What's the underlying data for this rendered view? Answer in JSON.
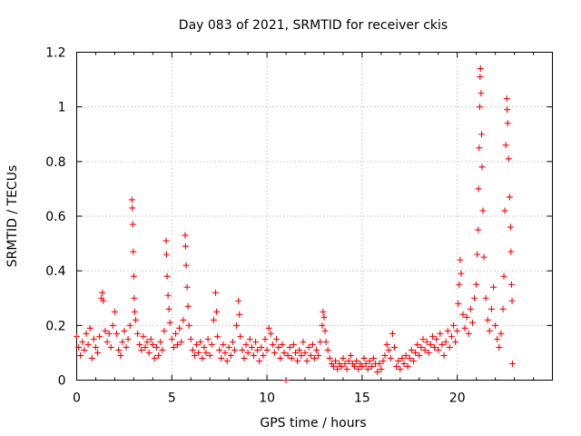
{
  "chart_data": {
    "type": "scatter",
    "title": "Day 083 of 2021, SRMTID for receiver ckis",
    "xlabel": "GPS time / hours",
    "ylabel": "SRMTID / TECUs",
    "xlim": [
      0,
      25
    ],
    "ylim": [
      0,
      1.2
    ],
    "xticks": [
      0,
      5,
      10,
      15,
      20
    ],
    "xtick_labels": [
      "0",
      "5",
      "10",
      "15",
      "20"
    ],
    "yticks": [
      0,
      0.2,
      0.4,
      0.6,
      0.8,
      1.0,
      1.2
    ],
    "ytick_labels": [
      "0",
      "0.2",
      "0.4",
      "0.6",
      "0.8",
      "1",
      "1.2"
    ],
    "grid": true,
    "marker": "+",
    "color": "#ff0000",
    "series": [
      {
        "name": "SRMTID",
        "points": [
          [
            0.0,
            0.16
          ],
          [
            0.1,
            0.12
          ],
          [
            0.2,
            0.09
          ],
          [
            0.3,
            0.14
          ],
          [
            0.4,
            0.11
          ],
          [
            0.5,
            0.17
          ],
          [
            0.6,
            0.13
          ],
          [
            0.7,
            0.19
          ],
          [
            0.8,
            0.08
          ],
          [
            0.9,
            0.15
          ],
          [
            1.0,
            0.12
          ],
          [
            1.1,
            0.1
          ],
          [
            1.2,
            0.16
          ],
          [
            1.3,
            0.3
          ],
          [
            1.35,
            0.32
          ],
          [
            1.4,
            0.29
          ],
          [
            1.5,
            0.18
          ],
          [
            1.6,
            0.14
          ],
          [
            1.7,
            0.17
          ],
          [
            1.8,
            0.12
          ],
          [
            1.9,
            0.2
          ],
          [
            2.0,
            0.25
          ],
          [
            2.1,
            0.17
          ],
          [
            2.2,
            0.11
          ],
          [
            2.3,
            0.09
          ],
          [
            2.4,
            0.14
          ],
          [
            2.5,
            0.18
          ],
          [
            2.6,
            0.12
          ],
          [
            2.7,
            0.15
          ],
          [
            2.8,
            0.2
          ],
          [
            2.9,
            0.66
          ],
          [
            2.92,
            0.63
          ],
          [
            2.95,
            0.57
          ],
          [
            2.97,
            0.47
          ],
          [
            3.0,
            0.38
          ],
          [
            3.02,
            0.3
          ],
          [
            3.05,
            0.25
          ],
          [
            3.1,
            0.22
          ],
          [
            3.2,
            0.17
          ],
          [
            3.3,
            0.13
          ],
          [
            3.4,
            0.11
          ],
          [
            3.5,
            0.16
          ],
          [
            3.6,
            0.12
          ],
          [
            3.7,
            0.14
          ],
          [
            3.8,
            0.1
          ],
          [
            3.9,
            0.15
          ],
          [
            4.0,
            0.13
          ],
          [
            4.1,
            0.08
          ],
          [
            4.2,
            0.12
          ],
          [
            4.3,
            0.09
          ],
          [
            4.4,
            0.14
          ],
          [
            4.5,
            0.11
          ],
          [
            4.6,
            0.18
          ],
          [
            4.7,
            0.51
          ],
          [
            4.72,
            0.46
          ],
          [
            4.75,
            0.38
          ],
          [
            4.8,
            0.31
          ],
          [
            4.85,
            0.26
          ],
          [
            4.9,
            0.21
          ],
          [
            5.0,
            0.15
          ],
          [
            5.1,
            0.12
          ],
          [
            5.2,
            0.17
          ],
          [
            5.3,
            0.13
          ],
          [
            5.4,
            0.19
          ],
          [
            5.5,
            0.14
          ],
          [
            5.6,
            0.22
          ],
          [
            5.7,
            0.53
          ],
          [
            5.72,
            0.49
          ],
          [
            5.75,
            0.42
          ],
          [
            5.8,
            0.34
          ],
          [
            5.85,
            0.27
          ],
          [
            5.9,
            0.2
          ],
          [
            6.0,
            0.15
          ],
          [
            6.1,
            0.11
          ],
          [
            6.2,
            0.09
          ],
          [
            6.3,
            0.13
          ],
          [
            6.4,
            0.1
          ],
          [
            6.5,
            0.14
          ],
          [
            6.6,
            0.08
          ],
          [
            6.7,
            0.12
          ],
          [
            6.8,
            0.1
          ],
          [
            6.9,
            0.15
          ],
          [
            7.0,
            0.09
          ],
          [
            7.1,
            0.13
          ],
          [
            7.2,
            0.22
          ],
          [
            7.3,
            0.32
          ],
          [
            7.35,
            0.25
          ],
          [
            7.4,
            0.16
          ],
          [
            7.5,
            0.11
          ],
          [
            7.6,
            0.08
          ],
          [
            7.7,
            0.13
          ],
          [
            7.8,
            0.1
          ],
          [
            7.9,
            0.07
          ],
          [
            8.0,
            0.12
          ],
          [
            8.1,
            0.09
          ],
          [
            8.2,
            0.14
          ],
          [
            8.3,
            0.11
          ],
          [
            8.4,
            0.2
          ],
          [
            8.5,
            0.29
          ],
          [
            8.55,
            0.24
          ],
          [
            8.6,
            0.16
          ],
          [
            8.7,
            0.11
          ],
          [
            8.8,
            0.08
          ],
          [
            8.9,
            0.13
          ],
          [
            9.0,
            0.1
          ],
          [
            9.1,
            0.15
          ],
          [
            9.2,
            0.12
          ],
          [
            9.3,
            0.09
          ],
          [
            9.4,
            0.14
          ],
          [
            9.5,
            0.11
          ],
          [
            9.6,
            0.07
          ],
          [
            9.7,
            0.12
          ],
          [
            9.8,
            0.09
          ],
          [
            9.9,
            0.15
          ],
          [
            10.0,
            0.11
          ],
          [
            10.1,
            0.19
          ],
          [
            10.2,
            0.17
          ],
          [
            10.3,
            0.13
          ],
          [
            10.4,
            0.1
          ],
          [
            10.5,
            0.15
          ],
          [
            10.6,
            0.12
          ],
          [
            10.7,
            0.08
          ],
          [
            10.8,
            0.13
          ],
          [
            10.9,
            0.1
          ],
          [
            11.0,
            0.0
          ],
          [
            11.1,
            0.09
          ],
          [
            11.2,
            0.12
          ],
          [
            11.3,
            0.08
          ],
          [
            11.4,
            0.13
          ],
          [
            11.5,
            0.1
          ],
          [
            11.6,
            0.07
          ],
          [
            11.7,
            0.11
          ],
          [
            11.8,
            0.09
          ],
          [
            11.9,
            0.14
          ],
          [
            12.0,
            0.1
          ],
          [
            12.1,
            0.07
          ],
          [
            12.2,
            0.12
          ],
          [
            12.3,
            0.09
          ],
          [
            12.4,
            0.13
          ],
          [
            12.5,
            0.08
          ],
          [
            12.6,
            0.11
          ],
          [
            12.7,
            0.09
          ],
          [
            12.8,
            0.14
          ],
          [
            12.9,
            0.2
          ],
          [
            12.95,
            0.25
          ],
          [
            13.0,
            0.23
          ],
          [
            13.05,
            0.18
          ],
          [
            13.1,
            0.14
          ],
          [
            13.2,
            0.11
          ],
          [
            13.3,
            0.08
          ],
          [
            13.4,
            0.06
          ],
          [
            13.5,
            0.05
          ],
          [
            13.6,
            0.07
          ],
          [
            13.7,
            0.04
          ],
          [
            13.8,
            0.06
          ],
          [
            13.9,
            0.05
          ],
          [
            14.0,
            0.08
          ],
          [
            14.1,
            0.06
          ],
          [
            14.2,
            0.04
          ],
          [
            14.3,
            0.07
          ],
          [
            14.4,
            0.09
          ],
          [
            14.5,
            0.06
          ],
          [
            14.6,
            0.05
          ],
          [
            14.7,
            0.07
          ],
          [
            14.8,
            0.04
          ],
          [
            14.9,
            0.06
          ],
          [
            15.0,
            0.05
          ],
          [
            15.1,
            0.08
          ],
          [
            15.2,
            0.06
          ],
          [
            15.3,
            0.04
          ],
          [
            15.4,
            0.07
          ],
          [
            15.5,
            0.05
          ],
          [
            15.6,
            0.08
          ],
          [
            15.7,
            0.06
          ],
          [
            15.8,
            0.03
          ],
          [
            15.9,
            0.06
          ],
          [
            16.0,
            0.04
          ],
          [
            16.1,
            0.07
          ],
          [
            16.2,
            0.09
          ],
          [
            16.3,
            0.13
          ],
          [
            16.4,
            0.11
          ],
          [
            16.5,
            0.08
          ],
          [
            16.6,
            0.17
          ],
          [
            16.7,
            0.12
          ],
          [
            16.8,
            0.05
          ],
          [
            16.9,
            0.07
          ],
          [
            17.0,
            0.04
          ],
          [
            17.1,
            0.08
          ],
          [
            17.2,
            0.06
          ],
          [
            17.3,
            0.09
          ],
          [
            17.4,
            0.05
          ],
          [
            17.5,
            0.08
          ],
          [
            17.6,
            0.11
          ],
          [
            17.7,
            0.07
          ],
          [
            17.8,
            0.1
          ],
          [
            17.9,
            0.13
          ],
          [
            18.0,
            0.09
          ],
          [
            18.1,
            0.12
          ],
          [
            18.2,
            0.15
          ],
          [
            18.3,
            0.11
          ],
          [
            18.4,
            0.14
          ],
          [
            18.5,
            0.1
          ],
          [
            18.6,
            0.13
          ],
          [
            18.7,
            0.16
          ],
          [
            18.8,
            0.12
          ],
          [
            18.9,
            0.15
          ],
          [
            19.0,
            0.11
          ],
          [
            19.1,
            0.17
          ],
          [
            19.2,
            0.13
          ],
          [
            19.3,
            0.09
          ],
          [
            19.4,
            0.14
          ],
          [
            19.5,
            0.18
          ],
          [
            19.6,
            0.12
          ],
          [
            19.7,
            0.16
          ],
          [
            19.8,
            0.2
          ],
          [
            19.9,
            0.14
          ],
          [
            20.0,
            0.18
          ],
          [
            20.05,
            0.28
          ],
          [
            20.1,
            0.35
          ],
          [
            20.15,
            0.44
          ],
          [
            20.2,
            0.39
          ],
          [
            20.3,
            0.24
          ],
          [
            20.4,
            0.19
          ],
          [
            20.5,
            0.23
          ],
          [
            20.6,
            0.17
          ],
          [
            20.7,
            0.26
          ],
          [
            20.8,
            0.21
          ],
          [
            20.9,
            0.3
          ],
          [
            21.0,
            0.35
          ],
          [
            21.05,
            0.46
          ],
          [
            21.1,
            0.55
          ],
          [
            21.12,
            0.7
          ],
          [
            21.15,
            0.85
          ],
          [
            21.18,
            1.0
          ],
          [
            21.2,
            1.11
          ],
          [
            21.22,
            1.14
          ],
          [
            21.25,
            1.05
          ],
          [
            21.28,
            0.9
          ],
          [
            21.3,
            0.78
          ],
          [
            21.35,
            0.62
          ],
          [
            21.4,
            0.45
          ],
          [
            21.5,
            0.3
          ],
          [
            21.6,
            0.22
          ],
          [
            21.7,
            0.18
          ],
          [
            21.8,
            0.26
          ],
          [
            21.9,
            0.34
          ],
          [
            22.0,
            0.2
          ],
          [
            22.1,
            0.15
          ],
          [
            22.2,
            0.12
          ],
          [
            22.3,
            0.17
          ],
          [
            22.4,
            0.26
          ],
          [
            22.45,
            0.38
          ],
          [
            22.5,
            0.62
          ],
          [
            22.55,
            0.86
          ],
          [
            22.6,
            1.03
          ],
          [
            22.62,
            0.99
          ],
          [
            22.65,
            0.94
          ],
          [
            22.7,
            0.81
          ],
          [
            22.75,
            0.67
          ],
          [
            22.8,
            0.56
          ],
          [
            22.82,
            0.47
          ],
          [
            22.85,
            0.35
          ],
          [
            22.88,
            0.29
          ],
          [
            22.9,
            0.06
          ]
        ]
      }
    ]
  }
}
